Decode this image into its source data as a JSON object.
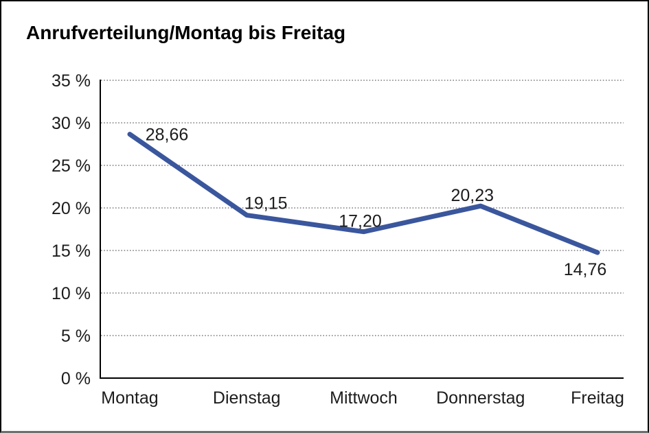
{
  "figure": {
    "title": "Anrufverteilung/Montag bis Freitag"
  },
  "chart_data": {
    "type": "line",
    "title": "Anrufverteilung/Montag bis Freitag",
    "categories": [
      "Montag",
      "Dienstag",
      "Mittwoch",
      "Donnerstag",
      "Freitag"
    ],
    "values": [
      28.66,
      19.15,
      17.2,
      20.23,
      14.76
    ],
    "value_labels": [
      "28,66",
      "19,15",
      "17,20",
      "20,23",
      "14,76"
    ],
    "unit": "%",
    "xlabel": "",
    "ylabel": "",
    "ylim": [
      0,
      35
    ],
    "ytick_step": 5,
    "ytick_labels": [
      "0 %",
      "5 %",
      "10 %",
      "15 %",
      "20 %",
      "25 %",
      "30 %",
      "35 %"
    ],
    "grid": "horizontal-dotted",
    "legend": "none",
    "colors": {
      "line": "#3A569D",
      "grid": "#7a7a7a",
      "axis": "#000000",
      "text": "#1c1c1c"
    }
  }
}
